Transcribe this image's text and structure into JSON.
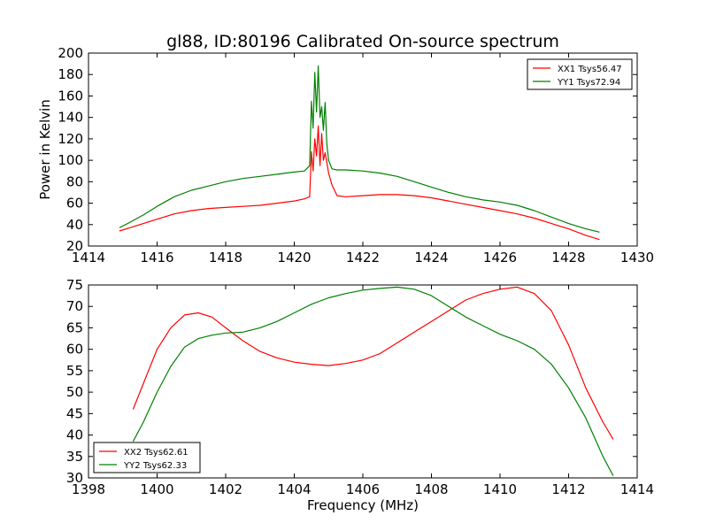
{
  "figure": {
    "title": "gl88, ID:80196 Calibrated On-source spectrum"
  },
  "chart_data": [
    {
      "type": "line",
      "title": "gl88, ID:80196 Calibrated On-source spectrum",
      "xlabel": "",
      "ylabel": "Power in Kelvin",
      "xlim": [
        1414,
        1430
      ],
      "ylim": [
        20,
        200
      ],
      "xticks": [
        1414,
        1416,
        1418,
        1420,
        1422,
        1424,
        1426,
        1428,
        1430
      ],
      "yticks": [
        20,
        40,
        60,
        80,
        100,
        120,
        140,
        160,
        180,
        200
      ],
      "grid": false,
      "legend_position": "top-right",
      "series": [
        {
          "name": "XX1 Tsys56.47",
          "color": "#ff0000",
          "x": [
            1414.9,
            1415.2,
            1415.6,
            1416.0,
            1416.5,
            1417.0,
            1417.5,
            1418.0,
            1418.5,
            1419.0,
            1419.5,
            1420.0,
            1420.3,
            1420.45,
            1420.5,
            1420.55,
            1420.6,
            1420.65,
            1420.7,
            1420.75,
            1420.8,
            1420.85,
            1420.9,
            1420.95,
            1421.0,
            1421.1,
            1421.25,
            1421.5,
            1422.0,
            1422.5,
            1423.0,
            1423.5,
            1424.0,
            1424.5,
            1425.0,
            1425.5,
            1426.0,
            1426.5,
            1427.0,
            1427.5,
            1428.0,
            1428.5,
            1428.9
          ],
          "y": [
            34,
            37,
            41,
            45,
            50,
            53,
            55,
            56,
            57,
            58,
            60,
            62,
            64,
            66,
            108,
            90,
            120,
            104,
            132,
            95,
            125,
            100,
            107,
            98,
            88,
            77,
            67,
            66,
            67,
            68,
            68,
            67,
            65,
            62,
            59,
            56,
            53,
            50,
            46,
            41,
            36,
            30,
            26
          ]
        },
        {
          "name": "YY1 Tsys72.94",
          "color": "#008000",
          "x": [
            1414.9,
            1415.2,
            1415.6,
            1416.0,
            1416.5,
            1417.0,
            1417.5,
            1418.0,
            1418.5,
            1419.0,
            1419.5,
            1420.0,
            1420.3,
            1420.45,
            1420.5,
            1420.55,
            1420.6,
            1420.65,
            1420.7,
            1420.75,
            1420.8,
            1420.85,
            1420.9,
            1420.95,
            1421.0,
            1421.1,
            1421.25,
            1421.5,
            1422.0,
            1422.5,
            1423.0,
            1423.5,
            1424.0,
            1424.5,
            1425.0,
            1425.5,
            1426.0,
            1426.5,
            1427.0,
            1427.5,
            1428.0,
            1428.5,
            1428.9
          ],
          "y": [
            37,
            42,
            49,
            57,
            66,
            72,
            76,
            80,
            83,
            85,
            87,
            89,
            90,
            95,
            155,
            130,
            182,
            145,
            188,
            140,
            150,
            128,
            154,
            115,
            100,
            92,
            91,
            91,
            90,
            88,
            85,
            80,
            75,
            70,
            66,
            63,
            61,
            58,
            53,
            47,
            41,
            36,
            33
          ]
        }
      ]
    },
    {
      "type": "line",
      "title": "",
      "xlabel": "Frequency (MHz)",
      "ylabel": "",
      "xlim": [
        1398,
        1414
      ],
      "ylim": [
        30,
        75
      ],
      "xticks": [
        1398,
        1400,
        1402,
        1404,
        1406,
        1408,
        1410,
        1412,
        1414
      ],
      "yticks": [
        30,
        35,
        40,
        45,
        50,
        55,
        60,
        65,
        70,
        75
      ],
      "grid": false,
      "legend_position": "bottom-left",
      "series": [
        {
          "name": "XX2 Tsys62.61",
          "color": "#ff0000",
          "x": [
            1399.3,
            1399.6,
            1400.0,
            1400.4,
            1400.8,
            1401.2,
            1401.6,
            1402.0,
            1402.5,
            1403.0,
            1403.5,
            1404.0,
            1404.5,
            1405.0,
            1405.5,
            1406.0,
            1406.5,
            1407.0,
            1407.5,
            1408.0,
            1408.5,
            1409.0,
            1409.5,
            1410.0,
            1410.5,
            1411.0,
            1411.5,
            1412.0,
            1412.5,
            1413.0,
            1413.3
          ],
          "y": [
            46,
            52,
            60,
            65,
            68,
            68.5,
            67.5,
            65,
            62,
            59.5,
            58,
            57,
            56.5,
            56.2,
            56.7,
            57.5,
            59,
            61.5,
            64,
            66.5,
            69,
            71.5,
            73,
            74,
            74.5,
            73,
            69,
            61,
            51,
            43,
            39
          ]
        },
        {
          "name": "YY2 Tsys62.33",
          "color": "#008000",
          "x": [
            1399.3,
            1399.6,
            1400.0,
            1400.4,
            1400.8,
            1401.2,
            1401.6,
            1402.0,
            1402.5,
            1403.0,
            1403.5,
            1404.0,
            1404.5,
            1405.0,
            1405.5,
            1406.0,
            1406.5,
            1407.0,
            1407.5,
            1408.0,
            1408.5,
            1409.0,
            1409.5,
            1410.0,
            1410.5,
            1411.0,
            1411.5,
            1412.0,
            1412.5,
            1413.0,
            1413.3
          ],
          "y": [
            38.5,
            43,
            50,
            56,
            60.5,
            62.5,
            63.3,
            63.8,
            64,
            65,
            66.5,
            68.5,
            70.5,
            72,
            73,
            73.8,
            74.2,
            74.5,
            74,
            72.5,
            70,
            67.5,
            65.5,
            63.5,
            62,
            60,
            56.5,
            51,
            44,
            35,
            30.5
          ]
        }
      ]
    }
  ]
}
